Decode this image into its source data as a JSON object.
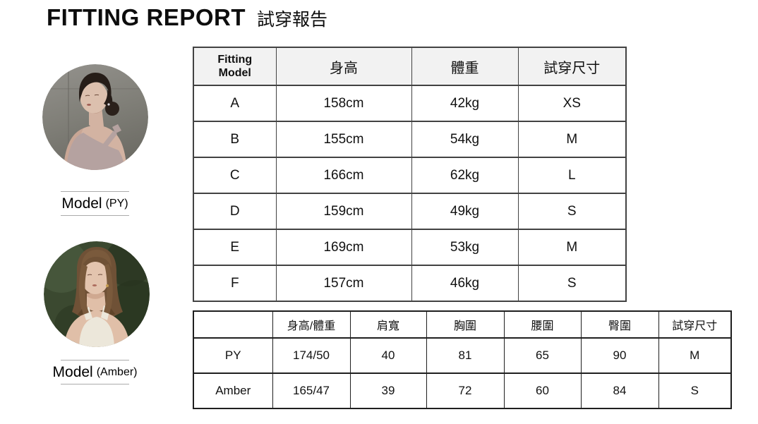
{
  "title": {
    "en": "FITTING REPORT",
    "zh": "試穿報告"
  },
  "models": [
    {
      "name": "Model",
      "id": "(PY)",
      "photo_alt": "model with dark low-bun hair wearing mauve one-shoulder top against grey concrete wall"
    },
    {
      "name": "Model",
      "id": "(Amber)",
      "photo_alt": "model with brown bob hair wearing cream tank top against dark green foliage"
    }
  ],
  "fitting_table": {
    "headers": [
      "Fitting\nModel",
      "身高",
      "體重",
      "試穿尺寸"
    ],
    "rows": [
      [
        "A",
        "158cm",
        "42kg",
        "XS"
      ],
      [
        "B",
        "155cm",
        "54kg",
        "M"
      ],
      [
        "C",
        "166cm",
        "62kg",
        "L"
      ],
      [
        "D",
        "159cm",
        "49kg",
        "S"
      ],
      [
        "E",
        "169cm",
        "53kg",
        "M"
      ],
      [
        "F",
        "157cm",
        "46kg",
        "S"
      ]
    ]
  },
  "model_table": {
    "headers": [
      "",
      "身高/體重",
      "肩寬",
      "胸圍",
      "腰圍",
      "臀圍",
      "試穿尺寸"
    ],
    "rows": [
      [
        "PY",
        "174/50",
        "40",
        "81",
        "65",
        "90",
        "M"
      ],
      [
        "Amber",
        "165/47",
        "39",
        "72",
        "60",
        "84",
        "S"
      ]
    ]
  },
  "colors": {
    "main_table_border": "#424242",
    "model_table_border": "#1f1f1f",
    "header_bg": "#f2f2f2",
    "label_hairline": "#ababab"
  }
}
